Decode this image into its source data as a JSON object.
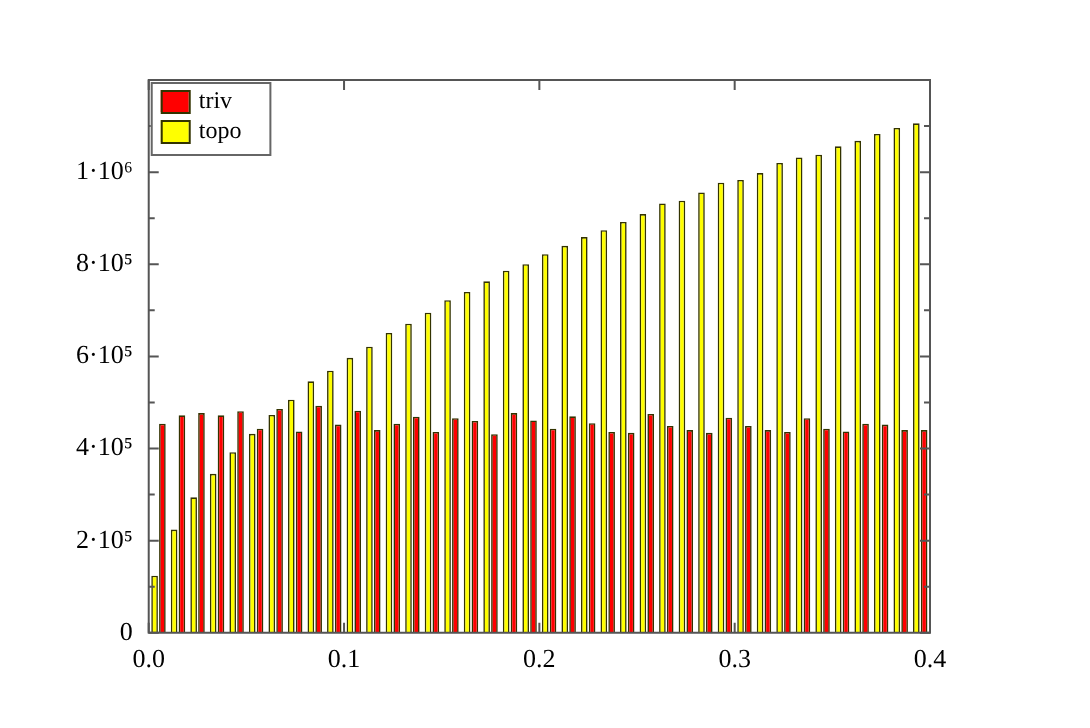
{
  "chart_data": {
    "type": "bar",
    "x": [
      0.005,
      0.015,
      0.025,
      0.035,
      0.045,
      0.055,
      0.065,
      0.075,
      0.085,
      0.095,
      0.105,
      0.115,
      0.125,
      0.135,
      0.145,
      0.155,
      0.165,
      0.175,
      0.185,
      0.195,
      0.205,
      0.215,
      0.225,
      0.235,
      0.245,
      0.255,
      0.265,
      0.275,
      0.285,
      0.295,
      0.305,
      0.315,
      0.325,
      0.335,
      0.345,
      0.355,
      0.365,
      0.375,
      0.385,
      0.395
    ],
    "series": [
      {
        "name": "topo",
        "color": "#ffff00",
        "values": [
          124000,
          224000,
          294000,
          345000,
          392000,
          432000,
          473000,
          506000,
          546000,
          569000,
          597000,
          621000,
          651000,
          671000,
          695000,
          722000,
          740000,
          763000,
          786000,
          800000,
          822000,
          840000,
          859000,
          874000,
          892000,
          909000,
          932000,
          938000,
          956000,
          977000,
          983000,
          998000,
          1020000,
          1032000,
          1038000,
          1056000,
          1068000,
          1083000,
          1096000,
          1106000
        ]
      },
      {
        "name": "triv",
        "color": "#ff0000",
        "values": [
          454000,
          472000,
          477000,
          472000,
          481000,
          443000,
          486000,
          437000,
          493000,
          452000,
          482000,
          440000,
          454000,
          469000,
          436000,
          466000,
          460000,
          431000,
          477000,
          461000,
          443000,
          470000,
          455000,
          436000,
          434000,
          475000,
          449000,
          440000,
          434000,
          467000,
          449000,
          440000,
          436000,
          466000,
          443000,
          437000,
          454000,
          452000,
          440000,
          440000
        ]
      }
    ],
    "xlim": [
      0,
      0.4
    ],
    "xticks": [
      {
        "value": 0,
        "label": "0.0"
      },
      {
        "value": 0.1,
        "label": "0.1"
      },
      {
        "value": 0.2,
        "label": "0.2"
      },
      {
        "value": 0.3,
        "label": "0.3"
      },
      {
        "value": 0.4,
        "label": "0.4"
      }
    ],
    "ylim": [
      0,
      1200000
    ],
    "yticks": [
      0,
      {
        "value": 100000,
        "label": null
      },
      {
        "value": 200000,
        "label": "2·10⁵"
      },
      {
        "value": 300000,
        "label": null
      },
      {
        "value": 400000,
        "label": "4·10⁵"
      },
      {
        "value": 500000,
        "label": null
      },
      {
        "value": 600000,
        "label": "6·10⁵"
      },
      {
        "value": 700000,
        "label": null
      },
      {
        "value": 800000,
        "label": "8·10⁵"
      },
      {
        "value": 900000,
        "label": null
      },
      {
        "value": 1000000,
        "label": "1·10⁶"
      },
      {
        "value": 1100000,
        "label": null
      }
    ],
    "grid": false,
    "legend": "top left"
  }
}
